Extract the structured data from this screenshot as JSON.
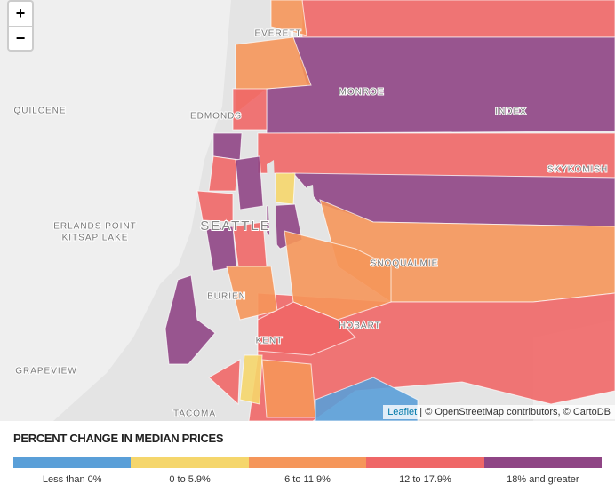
{
  "zoom": {
    "in": "+",
    "out": "−"
  },
  "places": [
    "EVERETT",
    "QUILCENE",
    "EDMONDS",
    "MONROE",
    "INDEX",
    "SKYKOMISH",
    "SEATTLE",
    "ERLANDS POINT",
    "KITSAP LAKE",
    "SNOQUALMIE",
    "BURIEN",
    "HOBART",
    "KENT",
    "GRAPEVIEW",
    "TACOMA"
  ],
  "attribution": {
    "link": "Leaflet",
    "separator": "|",
    "text": "© OpenStreetMap contributors, © CartoDB"
  },
  "legend": {
    "title": "PERCENT CHANGE IN MEDIAN PRICES",
    "items": [
      {
        "label": "Less than 0%",
        "color": "#5a9fd8"
      },
      {
        "label": "0 to 5.9%",
        "color": "#f5d66c"
      },
      {
        "label": "6 to 11.9%",
        "color": "#f5965a"
      },
      {
        "label": "12 to 17.9%",
        "color": "#ef6767"
      },
      {
        "label": "18% and greater",
        "color": "#8f4585"
      }
    ]
  }
}
